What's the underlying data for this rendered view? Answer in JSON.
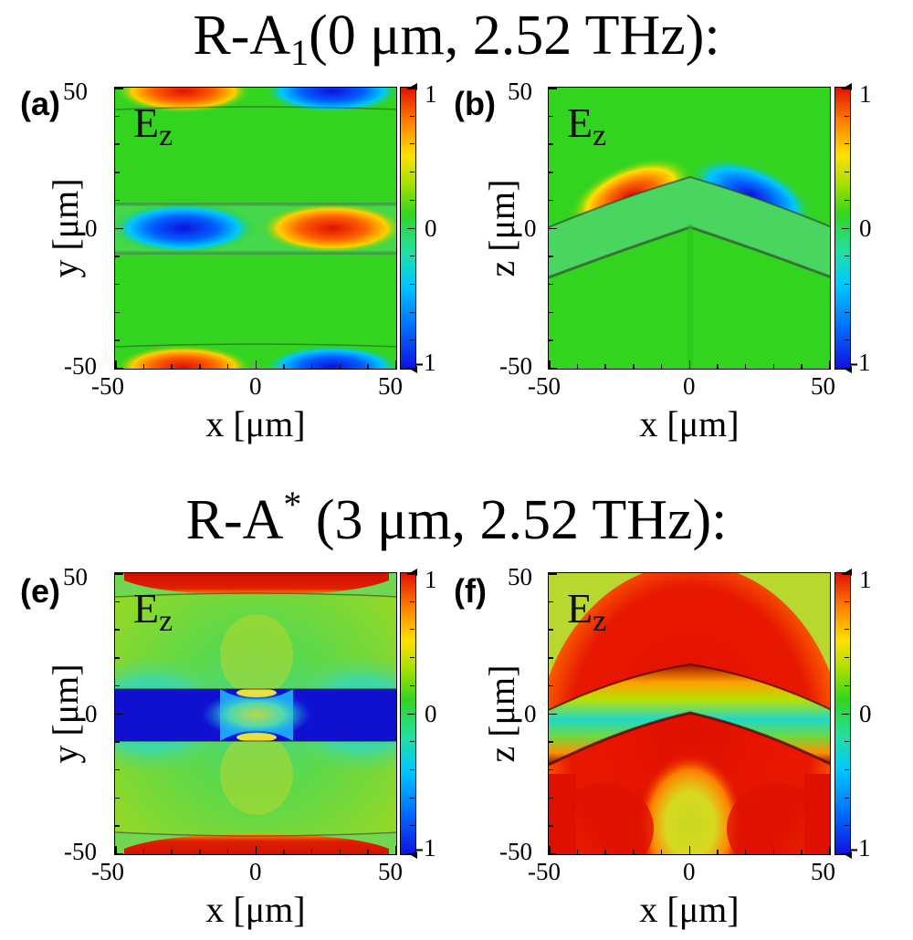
{
  "rows": [
    {
      "title_main": "R-A",
      "title_script": "1",
      "title_script_type": "sub",
      "title_rest": "(0 μm, 2.52 THz):"
    },
    {
      "title_main": "R-A",
      "title_script": "*",
      "title_script_type": "sup",
      "title_rest": " (3 μm, 2.52 THz):"
    }
  ],
  "panels": [
    {
      "id": "a",
      "label": "(a)",
      "field_main": "E",
      "field_sub": "z",
      "xlabel": "x [μm]",
      "ylabel": "y [μm]"
    },
    {
      "id": "b",
      "label": "(b)",
      "field_main": "E",
      "field_sub": "z",
      "xlabel": "x [μm]",
      "ylabel": "z [μm]"
    },
    {
      "id": "e",
      "label": "(e)",
      "field_main": "E",
      "field_sub": "z",
      "xlabel": "x [μm]",
      "ylabel": "y [μm]"
    },
    {
      "id": "f",
      "label": "(f)",
      "field_main": "E",
      "field_sub": "z",
      "xlabel": "x [μm]",
      "ylabel": "z [μm]"
    }
  ],
  "axis_ticks": {
    "x": [
      "-50",
      "0",
      "50"
    ],
    "y": [
      "50",
      "0",
      "-50"
    ]
  },
  "colorbar": {
    "ticks": [
      "1",
      "0",
      "-1"
    ],
    "range": [
      -1,
      1
    ],
    "colors": [
      "#1010e0",
      "#0070ff",
      "#00c8ff",
      "#22e0a0",
      "#33d420",
      "#a8e000",
      "#ffe000",
      "#ff8000",
      "#e01000"
    ]
  },
  "chart_data": [
    {
      "type": "heatmap",
      "panel": "(a)",
      "quantity": "E_z",
      "xlabel": "x [μm]",
      "ylabel": "y [μm]",
      "xlim": [
        -50,
        50
      ],
      "ylim": [
        -50,
        50
      ],
      "color_range": [
        -1,
        1
      ],
      "features": [
        {
          "region": "waveguide y=0, x<0",
          "value": -1
        },
        {
          "region": "waveguide y=0, x>0",
          "value": 1
        },
        {
          "region": "waveguide y=50, x<0",
          "value": 1
        },
        {
          "region": "waveguide y=50, x>0",
          "value": -1
        },
        {
          "region": "waveguide y=-50, x<0",
          "value": 1
        },
        {
          "region": "waveguide y=-50, x>0",
          "value": -1
        },
        {
          "region": "background",
          "value": 0
        }
      ]
    },
    {
      "type": "heatmap",
      "panel": "(b)",
      "quantity": "E_z",
      "xlabel": "x [μm]",
      "ylabel": "z [μm]",
      "xlim": [
        -50,
        50
      ],
      "ylim": [
        -50,
        50
      ],
      "color_range": [
        -1,
        1
      ],
      "features": [
        {
          "region": "above bent waveguide, x<0",
          "value": 1
        },
        {
          "region": "above bent waveguide, x>0",
          "value": -1
        },
        {
          "region": "background",
          "value": 0
        }
      ]
    },
    {
      "type": "heatmap",
      "panel": "(e)",
      "quantity": "E_z",
      "xlabel": "x [μm]",
      "ylabel": "y [μm]",
      "xlim": [
        -50,
        50
      ],
      "ylim": [
        -50,
        50
      ],
      "color_range": [
        -1,
        1
      ],
      "features": [
        {
          "region": "waveguide y=0",
          "value": -1
        },
        {
          "region": "waveguide y=0, x≈0",
          "value": 0.3
        },
        {
          "region": "waveguides y=±50",
          "value": 1
        },
        {
          "region": "background",
          "value": 0.1
        }
      ]
    },
    {
      "type": "heatmap",
      "panel": "(f)",
      "quantity": "E_z",
      "xlabel": "x [μm]",
      "ylabel": "z [μm]",
      "xlim": [
        -50,
        50
      ],
      "ylim": [
        -50,
        50
      ],
      "color_range": [
        -1,
        1
      ],
      "features": [
        {
          "region": "arch above and beside waveguide",
          "value": 1
        },
        {
          "region": "inside bent waveguide",
          "value": 0
        },
        {
          "region": "below waveguide, x≈0",
          "value": 0.5
        },
        {
          "region": "corners",
          "value": 0.2
        }
      ]
    }
  ]
}
